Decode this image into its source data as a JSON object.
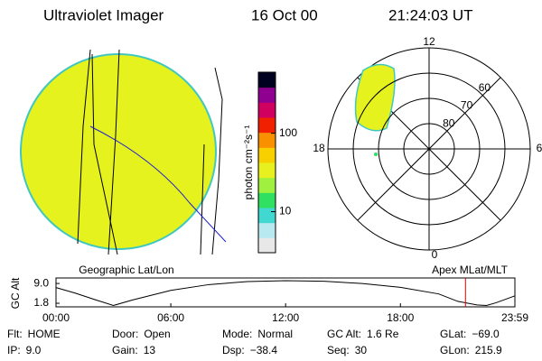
{
  "header": {
    "title": "Ultraviolet Imager",
    "date": "16 Oct 00",
    "time": "21:24:03 UT"
  },
  "colorbar": {
    "label": "photon cm⁻²s⁻¹",
    "scale": "log",
    "lim": [
      3,
      600
    ],
    "ticks": [
      10,
      100
    ],
    "colors": [
      "#e8e8e8",
      "#b8e8f0",
      "#40d8d0",
      "#30e060",
      "#a0f040",
      "#e8f020",
      "#f8d000",
      "#f89000",
      "#f02000",
      "#d00060",
      "#900090",
      "#000020"
    ]
  },
  "polar": {
    "lat_lim": [
      90,
      50
    ],
    "lat_ticks": [
      80,
      70,
      60
    ],
    "mlt_ticks": [
      12,
      18,
      6,
      0
    ]
  },
  "panels": {
    "left_label": "Geographic Lat/Lon",
    "right_label": "Apex MLat/MLT"
  },
  "timeline": {
    "y_label": "GC Alt",
    "x": [
      0,
      1,
      2,
      3,
      4,
      6,
      8,
      10,
      12,
      14,
      16,
      18,
      20,
      21,
      22,
      22.5,
      23,
      23.983
    ],
    "values": [
      7.5,
      5.5,
      3.2,
      1.0,
      3.0,
      6.5,
      8.6,
      9.7,
      10.0,
      9.8,
      9.0,
      7.6,
      5.2,
      2.5,
      1.2,
      1.0,
      2.0,
      4.5
    ],
    "xlim": [
      0,
      23.983
    ],
    "xticks": [
      {
        "value": 0,
        "label": "00:00"
      },
      {
        "value": 6,
        "label": "06:00"
      },
      {
        "value": 12,
        "label": "12:00"
      },
      {
        "value": 18,
        "label": "18:00"
      },
      {
        "value": 23.983,
        "label": "23:59"
      }
    ],
    "ylim": [
      0.5,
      11
    ],
    "yticks": [
      {
        "value": 9,
        "label": "9.0"
      },
      {
        "value": 1.8,
        "label": "1.8"
      }
    ],
    "current_time": 21.4,
    "color": "#000000",
    "marker_color": "#e00000"
  },
  "footer": [
    [
      {
        "label": "Flt:",
        "value": "HOME"
      },
      {
        "label": "IP:",
        "value": "9.0"
      }
    ],
    [
      {
        "label": "Door:",
        "value": "Open"
      },
      {
        "label": "Gain:",
        "value": "13"
      }
    ],
    [
      {
        "label": "Mode:",
        "value": "Normal"
      },
      {
        "label": "Dsp:",
        "value": "−38.4"
      }
    ],
    [
      {
        "label": "GC Alt:",
        "value": "1.6 Re"
      },
      {
        "label": "Seq:",
        "value": "30"
      }
    ],
    [
      {
        "label": "GLat:",
        "value": "−69.0"
      },
      {
        "label": "GLon:",
        "value": "215.9"
      }
    ]
  ]
}
